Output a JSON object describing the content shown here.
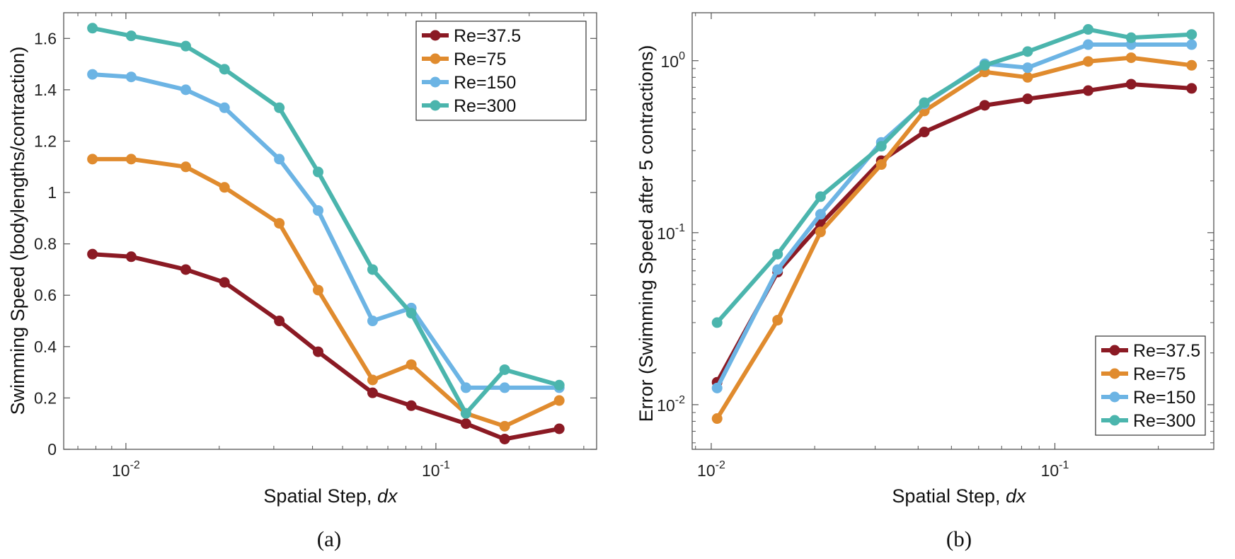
{
  "chart_data": [
    {
      "type": "line",
      "panel": "(a)",
      "xscale": "log",
      "xlabel": "Spatial Step, dx",
      "xlabel_main": "Spatial Step, ",
      "xlabel_var": "dx",
      "ylabel": "Swimming Speed (bodylengths/contraction)",
      "xlim": [
        0.0063,
        0.33
      ],
      "ylim": [
        0,
        1.7
      ],
      "xticks": [
        {
          "value": 0.01,
          "base": "10",
          "exp": "-2"
        },
        {
          "value": 0.1,
          "base": "10",
          "exp": "-1"
        }
      ],
      "yticks": [
        {
          "value": 0,
          "label": "0"
        },
        {
          "value": 0.2,
          "label": "0.2"
        },
        {
          "value": 0.4,
          "label": "0.4"
        },
        {
          "value": 0.6,
          "label": "0.6"
        },
        {
          "value": 0.8,
          "label": "0.8"
        },
        {
          "value": 1,
          "label": "1"
        },
        {
          "value": 1.2,
          "label": "1.2"
        },
        {
          "value": 1.4,
          "label": "1.4"
        },
        {
          "value": 1.6,
          "label": "1.6"
        }
      ],
      "legend_position": "top-right",
      "x": [
        0.0078,
        0.0104,
        0.0156,
        0.0208,
        0.03125,
        0.0417,
        0.0625,
        0.0833,
        0.125,
        0.1667,
        0.25
      ],
      "series": [
        {
          "name": "Re=37.5",
          "color": "#8B1A24",
          "values": [
            0.76,
            0.75,
            0.7,
            0.65,
            0.5,
            0.38,
            0.22,
            0.17,
            0.1,
            0.04,
            0.08
          ]
        },
        {
          "name": "Re=75",
          "color": "#E08B2E",
          "values": [
            1.13,
            1.13,
            1.1,
            1.02,
            0.88,
            0.62,
            0.27,
            0.33,
            0.14,
            0.09,
            0.19
          ]
        },
        {
          "name": "Re=150",
          "color": "#6CB4E4",
          "values": [
            1.46,
            1.45,
            1.4,
            1.33,
            1.13,
            0.93,
            0.5,
            0.55,
            0.24,
            0.24,
            0.24
          ]
        },
        {
          "name": "Re=300",
          "color": "#4BB5AD",
          "values": [
            1.64,
            1.61,
            1.57,
            1.48,
            1.33,
            1.08,
            0.7,
            0.53,
            0.14,
            0.31,
            0.25
          ]
        }
      ]
    },
    {
      "type": "line",
      "panel": "(b)",
      "xscale": "log",
      "yscale": "log",
      "xlabel": "Spatial Step, dx",
      "xlabel_main": "Spatial Step, ",
      "xlabel_var": "dx",
      "ylabel": "Error (Swimming Speed after 5 contractions)",
      "xlim": [
        0.0088,
        0.29
      ],
      "ylim": [
        0.0055,
        1.9
      ],
      "xticks": [
        {
          "value": 0.01,
          "base": "10",
          "exp": "-2"
        },
        {
          "value": 0.1,
          "base": "10",
          "exp": "-1"
        }
      ],
      "yticks": [
        {
          "value": 0.01,
          "base": "10",
          "exp": "-2"
        },
        {
          "value": 0.1,
          "base": "10",
          "exp": "-1"
        },
        {
          "value": 1,
          "base": "10",
          "exp": "0"
        }
      ],
      "legend_position": "bottom-right",
      "x": [
        0.0104,
        0.0156,
        0.0208,
        0.03125,
        0.0417,
        0.0625,
        0.0833,
        0.125,
        0.1667,
        0.25
      ],
      "series": [
        {
          "name": "Re=37.5",
          "color": "#8B1A24",
          "values": [
            0.0135,
            0.059,
            0.112,
            0.262,
            0.385,
            0.55,
            0.6,
            0.67,
            0.73,
            0.69
          ]
        },
        {
          "name": "Re=75",
          "color": "#E08B2E",
          "values": [
            0.0083,
            0.031,
            0.101,
            0.249,
            0.51,
            0.86,
            0.8,
            0.99,
            1.04,
            0.94
          ]
        },
        {
          "name": "Re=150",
          "color": "#6CB4E4",
          "values": [
            0.0125,
            0.061,
            0.128,
            0.335,
            0.56,
            0.96,
            0.91,
            1.24,
            1.24,
            1.24
          ]
        },
        {
          "name": "Re=300",
          "color": "#4BB5AD",
          "values": [
            0.03,
            0.075,
            0.162,
            0.318,
            0.57,
            0.94,
            1.13,
            1.52,
            1.36,
            1.42
          ]
        }
      ]
    }
  ]
}
